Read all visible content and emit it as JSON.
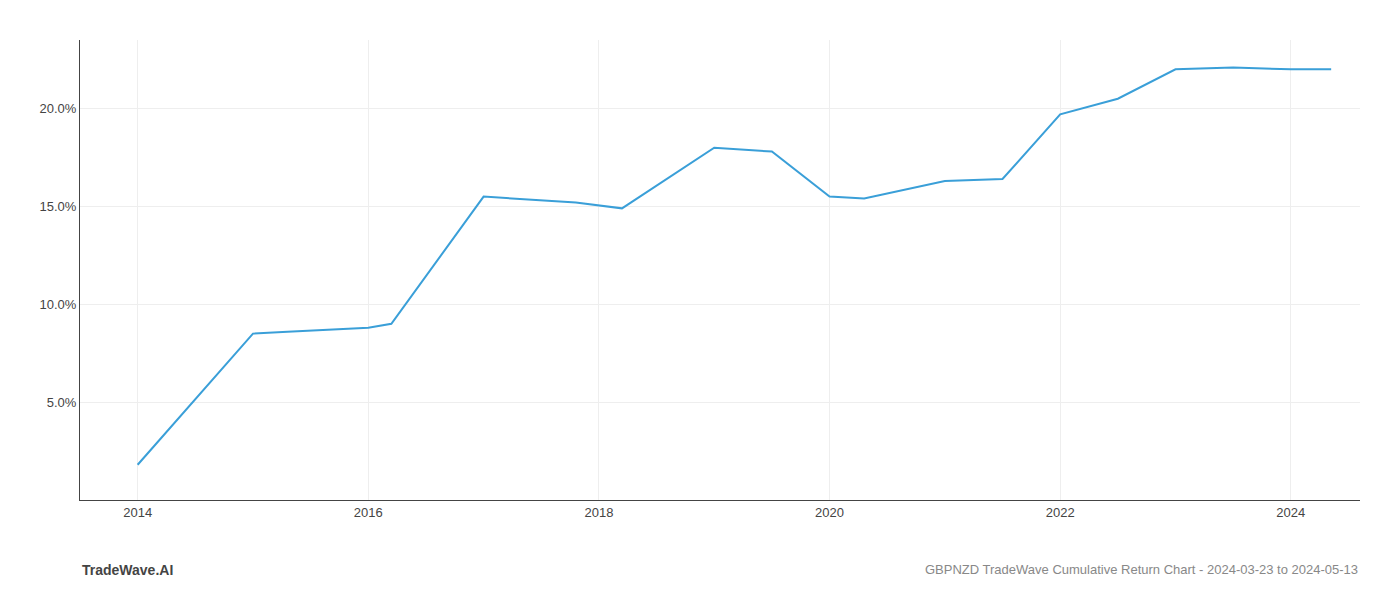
{
  "chart_data": {
    "type": "line",
    "x": [
      2014.0,
      2015.0,
      2015.3,
      2016.0,
      2016.2,
      2017.0,
      2017.8,
      2018.2,
      2019.0,
      2019.5,
      2020.0,
      2020.3,
      2021.0,
      2021.5,
      2022.0,
      2022.5,
      2023.0,
      2023.5,
      2024.0,
      2024.35
    ],
    "values": [
      1.8,
      8.5,
      8.6,
      8.8,
      9.0,
      15.5,
      15.2,
      14.9,
      18.0,
      17.8,
      15.5,
      15.4,
      16.3,
      16.4,
      19.7,
      20.5,
      22.0,
      22.1,
      22.0,
      22.0
    ],
    "color": "#3a9fd8",
    "xlim": [
      2013.5,
      2024.6
    ],
    "ylim": [
      0,
      23.5
    ],
    "xticks": [
      2014,
      2016,
      2018,
      2020,
      2022,
      2024
    ],
    "yticks": [
      {
        "value": 5.0,
        "label": "5.0%"
      },
      {
        "value": 10.0,
        "label": "10.0%"
      },
      {
        "value": 15.0,
        "label": "15.0%"
      },
      {
        "value": 20.0,
        "label": "20.0%"
      }
    ],
    "grid": true,
    "annotations": [
      "TradeWave.AI",
      "GBPNZD TradeWave Cumulative Return Chart - 2024-03-23 to 2024-05-13"
    ]
  }
}
